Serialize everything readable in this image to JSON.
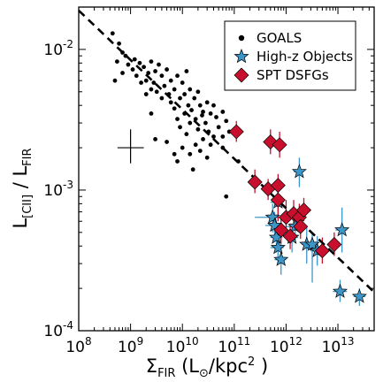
{
  "chart_data": {
    "type": "scatter",
    "x_scale": "log",
    "y_scale": "log",
    "xlim": [
      100000000.0,
      50000000000000.0
    ],
    "ylim": [
      0.0001,
      0.02
    ],
    "x_ticks": [
      {
        "value": 100000000.0,
        "base": "10",
        "exp": "8"
      },
      {
        "value": 1000000000.0,
        "base": "10",
        "exp": "9"
      },
      {
        "value": 10000000000.0,
        "base": "10",
        "exp": "10"
      },
      {
        "value": 100000000000.0,
        "base": "10",
        "exp": "11"
      },
      {
        "value": 1000000000000.0,
        "base": "10",
        "exp": "12"
      },
      {
        "value": 10000000000000.0,
        "base": "10",
        "exp": "13"
      }
    ],
    "y_ticks": [
      {
        "value": 0.0001,
        "base": "10",
        "exp": "-4"
      },
      {
        "value": 0.001,
        "base": "10",
        "exp": "-3"
      },
      {
        "value": 0.01,
        "base": "10",
        "exp": "-2"
      }
    ],
    "xlabel": {
      "sym": "Σ",
      "sub": "FIR",
      "open": " (L",
      "sun": "⊙",
      "unit": "/kpc",
      "sup": "2",
      "close": " )"
    },
    "ylabel": {
      "l1": "L",
      "sub1": "[CII]",
      "mid": " / L",
      "sub2": "FIR"
    },
    "legend": {
      "position": "top-right",
      "items": [
        {
          "label": "GOALS",
          "marker": "circle",
          "color": "#000000"
        },
        {
          "label": "High-z Objects",
          "marker": "star",
          "color": "#3c96c8"
        },
        {
          "label": "SPT DSFGs",
          "marker": "diamond",
          "color": "#c8102e"
        }
      ]
    },
    "fit_line": {
      "style": "dashed",
      "color": "#000000",
      "points": [
        [
          100000000.0,
          0.0189
        ],
        [
          50000000000000.0,
          0.000188
        ]
      ]
    },
    "typical_error": {
      "x": 1000000000.0,
      "y": 0.002,
      "x_range": [
        560000000.0,
        1800000000.0
      ],
      "y_range": [
        0.00155,
        0.0027
      ]
    },
    "series": [
      {
        "name": "GOALS",
        "marker": "circle",
        "color": "#000000",
        "points": [
          [
            450000000.0,
            0.013
          ],
          [
            600000000.0,
            0.011
          ],
          [
            700000000.0,
            0.0095
          ],
          [
            550000000.0,
            0.0082
          ],
          [
            800000000.0,
            0.009
          ],
          [
            900000000.0,
            0.0078
          ],
          [
            1200000000.0,
            0.0085
          ],
          [
            1500000000.0,
            0.008
          ],
          [
            1100000000.0,
            0.0072
          ],
          [
            700000000.0,
            0.0068
          ],
          [
            1300000000.0,
            0.0065
          ],
          [
            1800000000.0,
            0.0075
          ],
          [
            2200000000.0,
            0.0068
          ],
          [
            2500000000.0,
            0.0082
          ],
          [
            2000000000.0,
            0.006
          ],
          [
            3000000000.0,
            0.007
          ],
          [
            3500000000.0,
            0.0078
          ],
          [
            1600000000.0,
            0.0058
          ],
          [
            2800000000.0,
            0.0058
          ],
          [
            4000000000.0,
            0.0065
          ],
          [
            2500000000.0,
            0.0052
          ],
          [
            3200000000.0,
            0.005
          ],
          [
            4500000000.0,
            0.0055
          ],
          [
            5000000000.0,
            0.0072
          ],
          [
            6000000000.0,
            0.006
          ],
          [
            2000000000.0,
            0.0048
          ],
          [
            4000000000.0,
            0.0045
          ],
          [
            5500000000.0,
            0.0048
          ],
          [
            7000000000.0,
            0.0052
          ],
          [
            8000000000.0,
            0.0065
          ],
          [
            10000000000.0,
            0.0058
          ],
          [
            12000000000.0,
            0.007
          ],
          [
            500000000.0,
            0.006
          ],
          [
            6000000000.0,
            0.0042
          ],
          [
            9000000000.0,
            0.0045
          ],
          [
            11000000000.0,
            0.0048
          ],
          [
            14000000000.0,
            0.0052
          ],
          [
            7000000000.0,
            0.0038
          ],
          [
            13000000000.0,
            0.004
          ],
          [
            17000000000.0,
            0.0045
          ],
          [
            20000000000.0,
            0.005
          ],
          [
            11000000000.0,
            0.0035
          ],
          [
            15000000000.0,
            0.0037
          ],
          [
            22000000000.0,
            0.004
          ],
          [
            25000000000.0,
            0.0036
          ],
          [
            30000000000.0,
            0.0042
          ],
          [
            18000000000.0,
            0.0032
          ],
          [
            24000000000.0,
            0.0034
          ],
          [
            35000000000.0,
            0.0035
          ],
          [
            40000000000.0,
            0.004
          ],
          [
            28000000000.0,
            0.003
          ],
          [
            14000000000.0,
            0.003
          ],
          [
            45000000000.0,
            0.0033
          ],
          [
            60000000000.0,
            0.0036
          ],
          [
            20000000000.0,
            0.0027
          ],
          [
            32000000000.0,
            0.0026
          ],
          [
            50000000000.0,
            0.0028
          ],
          [
            70000000000.0,
            0.0031
          ],
          [
            9000000000.0,
            0.0028
          ],
          [
            40000000000.0,
            0.0024
          ],
          [
            60000000000.0,
            0.0024
          ],
          [
            12000000000.0,
            0.0025
          ],
          [
            25000000000.0,
            0.0023
          ],
          [
            18000000000.0,
            0.0021
          ],
          [
            10000000000.0,
            0.002
          ],
          [
            35000000000.0,
            0.0021
          ],
          [
            80000000000.0,
            0.0026
          ],
          [
            5000000000.0,
            0.0022
          ],
          [
            7000000000.0,
            0.0018
          ],
          [
            14000000000.0,
            0.0018
          ],
          [
            22000000000.0,
            0.0019
          ],
          [
            30000000000.0,
            0.0017
          ],
          [
            60000000000.0,
            0.002
          ],
          [
            8000000000.0,
            0.0016
          ],
          [
            120000000000.0,
            0.0016
          ],
          [
            70000000000.0,
            0.0009
          ],
          [
            3000000000.0,
            0.0023
          ],
          [
            16000000000.0,
            0.0014
          ],
          [
            2500000000.0,
            0.0035
          ],
          [
            8000000000.0,
            0.0032
          ]
        ]
      },
      {
        "name": "High-z Objects",
        "marker": "star",
        "color": "#3c96c8",
        "points": [
          {
            "x": 1800000000000.0,
            "y": 0.00135,
            "xerr": [
              1400000000000.0,
              2200000000000.0
            ],
            "yerr": [
              0.00105,
              0.0017
            ]
          },
          {
            "x": 700000000000.0,
            "y": 0.00082,
            "xerr": [
              500000000000.0,
              900000000000.0
            ],
            "yerr": [
              0.0006,
              0.0011
            ]
          },
          {
            "x": 550000000000.0,
            "y": 0.00064,
            "xerr": [
              250000000000.0,
              800000000000.0
            ],
            "yerr": [
              0.0005,
              0.0008
            ]
          },
          {
            "x": 600000000000.0,
            "y": 0.00056,
            "xerr": [
              400000000000.0,
              800000000000.0
            ],
            "yerr": [
              0.00045,
              0.0007
            ]
          },
          {
            "x": 1500000000000.0,
            "y": 0.00055,
            "xerr": [
              1000000000000.0,
              2000000000000.0
            ],
            "yerr": [
              0.00042,
              0.0007
            ]
          },
          {
            "x": 650000000000.0,
            "y": 0.00046,
            "xerr": [
              500000000000.0,
              850000000000.0
            ],
            "yerr": [
              0.00036,
              0.00058
            ]
          },
          {
            "x": 1300000000000.0,
            "y": 0.00046,
            "xerr": [
              1000000000000.0,
              1700000000000.0
            ],
            "yerr": [
              0.00036,
              0.00058
            ]
          },
          {
            "x": 2500000000000.0,
            "y": 0.00041,
            "xerr": [
              2000000000000.0,
              3200000000000.0
            ],
            "yerr": [
              0.0003,
              0.00055
            ]
          },
          {
            "x": 3200000000000.0,
            "y": 0.00041,
            "xerr": [
              2500000000000.0,
              4000000000000.0
            ],
            "yerr": [
              0.00022,
              0.0005
            ]
          },
          {
            "x": 700000000000.0,
            "y": 0.00039,
            "xerr": [
              500000000000.0,
              900000000000.0
            ],
            "yerr": [
              0.0003,
              0.00051
            ]
          },
          {
            "x": 4000000000000.0,
            "y": 0.00037,
            "xerr": [
              3000000000000.0,
              5500000000000.0
            ],
            "yerr": [
              0.00029,
              0.00047
            ]
          },
          {
            "x": 800000000000.0,
            "y": 0.00032,
            "xerr": [
              600000000000.0,
              1000000000000.0
            ],
            "yerr": [
              0.00025,
              0.00042
            ]
          },
          {
            "x": 12000000000000.0,
            "y": 0.00052,
            "xerr": [
              9000000000000.0,
              15000000000000.0
            ],
            "yerr": [
              0.00036,
              0.00075
            ]
          },
          {
            "x": 11000000000000.0,
            "y": 0.00019,
            "xerr": [
              8000000000000.0,
              15000000000000.0
            ],
            "yerr": [
              0.00016,
              0.00023
            ]
          },
          {
            "x": 26000000000000.0,
            "y": 0.000175,
            "xerr": [
              20000000000000.0,
              34000000000000.0
            ],
            "yerr": [
              0.00015,
              0.0002
            ]
          }
        ]
      },
      {
        "name": "SPT DSFGs",
        "marker": "diamond",
        "color": "#c8102e",
        "points": [
          {
            "x": 110000000000.0,
            "y": 0.0026,
            "yerr": [
              0.0022,
              0.0031
            ]
          },
          {
            "x": 500000000000.0,
            "y": 0.0022,
            "yerr": [
              0.0018,
              0.0027
            ]
          },
          {
            "x": 750000000000.0,
            "y": 0.0021,
            "yerr": [
              0.0017,
              0.0026
            ]
          },
          {
            "x": 250000000000.0,
            "y": 0.00114,
            "yerr": [
              0.00095,
              0.0014
            ]
          },
          {
            "x": 450000000000.0,
            "y": 0.00102,
            "yerr": [
              0.00085,
              0.0012
            ]
          },
          {
            "x": 700000000000.0,
            "y": 0.00108,
            "yerr": [
              0.0009,
              0.0013
            ]
          },
          {
            "x": 700000000000.0,
            "y": 0.00085,
            "yerr": [
              0.0006,
              0.00115
            ]
          },
          {
            "x": 1000000000000.0,
            "y": 0.00064,
            "yerr": [
              0.0005,
              0.00085
            ]
          },
          {
            "x": 1400000000000.0,
            "y": 0.00068,
            "yerr": [
              0.00055,
              0.00085
            ]
          },
          {
            "x": 1800000000000.0,
            "y": 0.00064,
            "yerr": [
              0.00052,
              0.0008
            ]
          },
          {
            "x": 2200000000000.0,
            "y": 0.00072,
            "yerr": [
              0.0006,
              0.00088
            ]
          },
          {
            "x": 1900000000000.0,
            "y": 0.00055,
            "yerr": [
              0.00045,
              0.00068
            ]
          },
          {
            "x": 800000000000.0,
            "y": 0.00052,
            "yerr": [
              0.00042,
              0.00064
            ]
          },
          {
            "x": 1200000000000.0,
            "y": 0.00047,
            "yerr": [
              0.00038,
              0.00058
            ]
          },
          {
            "x": 5000000000000.0,
            "y": 0.00037,
            "yerr": [
              0.0003,
              0.00046
            ]
          },
          {
            "x": 8500000000000.0,
            "y": 0.00041,
            "yerr": [
              0.00034,
              0.0005
            ]
          }
        ]
      }
    ]
  }
}
